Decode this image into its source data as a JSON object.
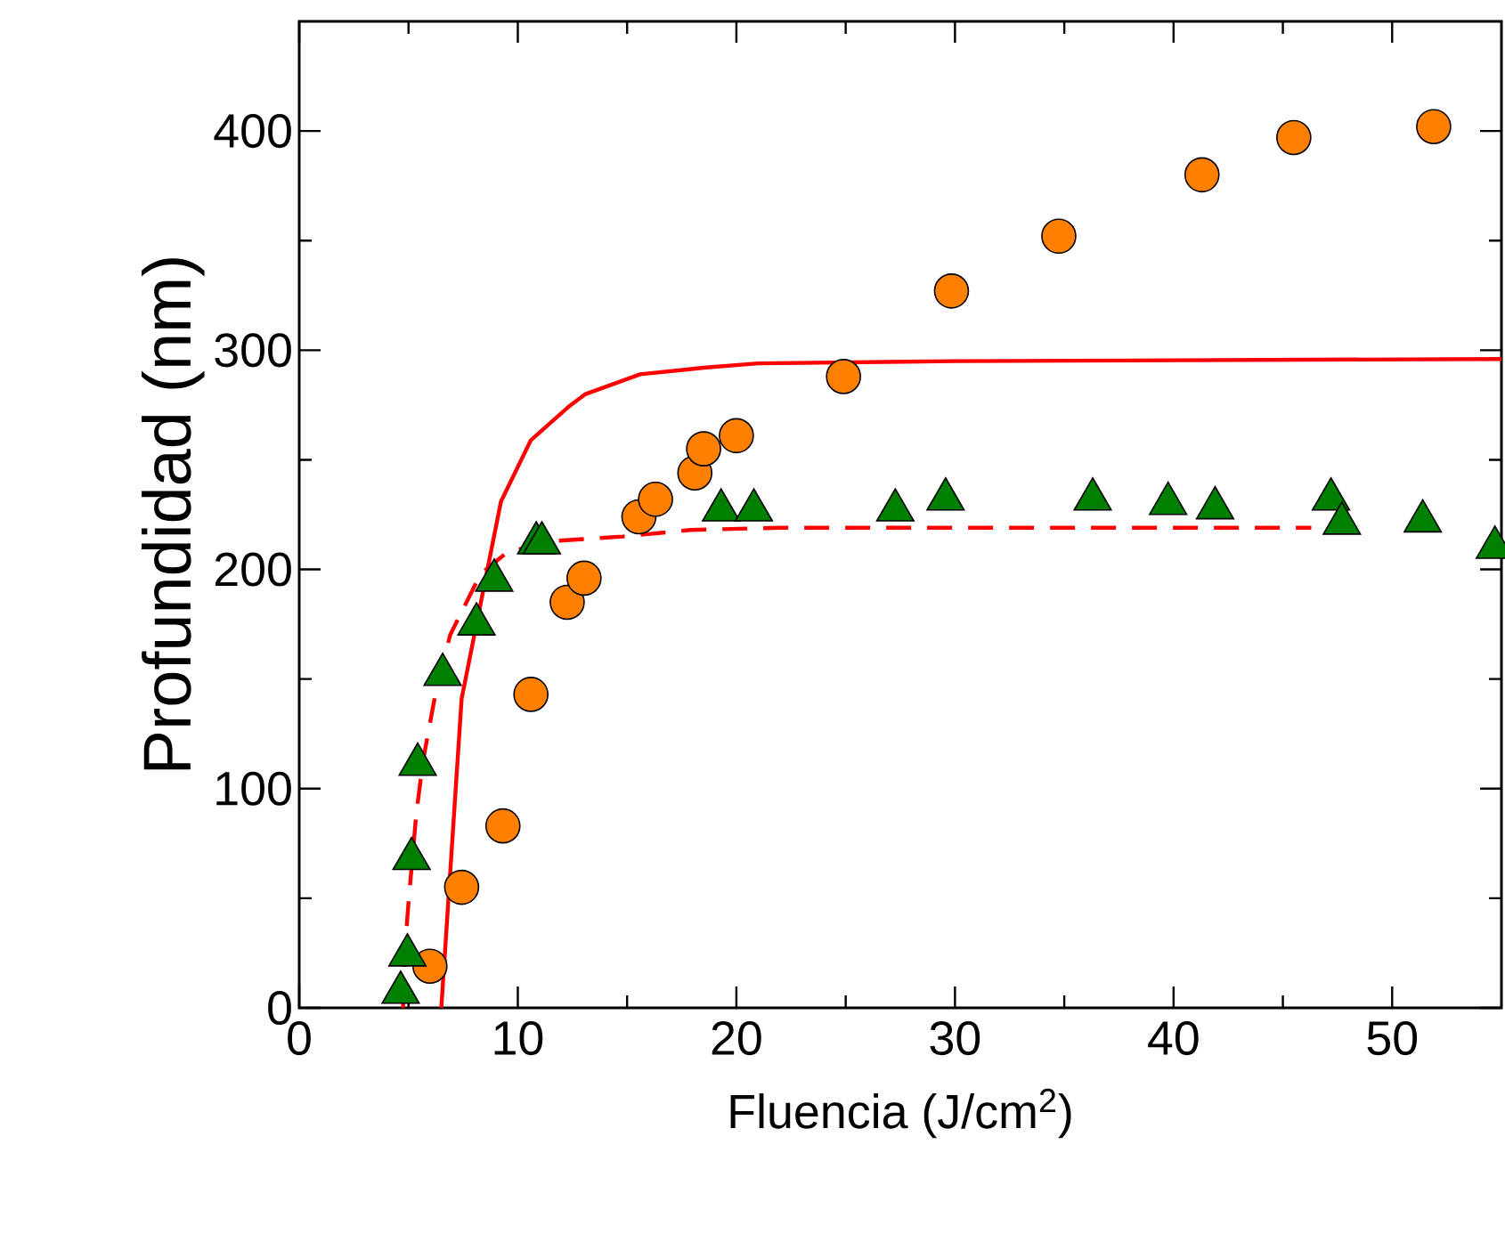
{
  "chart_data": {
    "type": "scatter",
    "xlabel": "Fluencia (J/cm$^{2}$)",
    "ylabel": "Profundidad (nm)",
    "xlim": [
      0,
      55
    ],
    "ylim": [
      0,
      450
    ],
    "xticks": [
      0,
      10,
      20,
      30,
      40,
      50
    ],
    "yticks": [
      0,
      100,
      200,
      300,
      400
    ],
    "series": [
      {
        "type": "line",
        "color": "#ff0000",
        "line_style": "solid",
        "marker": "none",
        "x": [
          6.5,
          7.43,
          9.23,
          10.6,
          12.3,
          13.1,
          15.6,
          18.5,
          21,
          30,
          55
        ],
        "values": [
          0,
          141,
          231,
          259,
          274,
          280,
          289,
          292,
          294,
          295,
          296
        ]
      },
      {
        "type": "line",
        "color": "#ff0000",
        "line_style": "dashed",
        "marker": "none",
        "x": [
          4.75,
          4.83,
          5.0,
          5.36,
          5.67,
          6.19,
          6.9,
          8.3,
          9.54,
          11.7,
          14.8,
          17.9,
          22,
          30,
          46.3
        ],
        "values": [
          0,
          26,
          48,
          89,
          113,
          141,
          170,
          198,
          208,
          213,
          215,
          218,
          219,
          219,
          219
        ]
      },
      {
        "color": "#ff8000",
        "marker": "circle",
        "x": [
          5.98,
          7.43,
          9.32,
          10.6,
          12.26,
          13.03,
          15.54,
          16.3,
          18.1,
          18.5,
          20.0,
          24.9,
          29.84,
          34.75,
          41.3,
          45.5,
          51.9
        ],
        "values": [
          19,
          55,
          83,
          143,
          185,
          196,
          224,
          232,
          244,
          255,
          261,
          288,
          327,
          352,
          380,
          397,
          402
        ]
      },
      {
        "color": "#007f00",
        "marker": "triangle",
        "x": [
          4.64,
          4.95,
          5.14,
          5.42,
          6.56,
          8.11,
          8.92,
          10.84,
          11.1,
          19.3,
          20.8,
          27.27,
          29.57,
          36.3,
          39.75,
          41.9,
          47.2,
          47.7,
          51.4,
          54.7
        ],
        "values": [
          7,
          24,
          68,
          111,
          152,
          175,
          195,
          212,
          212,
          227,
          227,
          227,
          232,
          232,
          230,
          228,
          232,
          221,
          222,
          210
        ]
      }
    ]
  }
}
